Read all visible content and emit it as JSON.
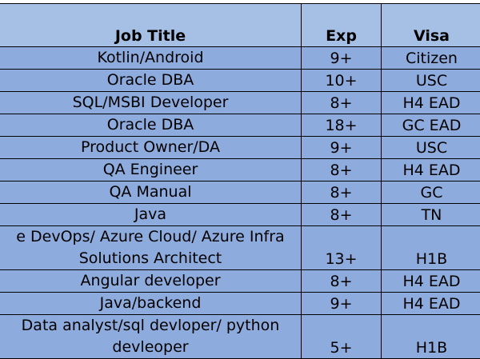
{
  "headers": {
    "title": "Job Title",
    "exp": "Exp",
    "visa": "Visa"
  },
  "rows": [
    {
      "title_lines": [
        "Kotlin/Android"
      ],
      "exp": "9+",
      "visa": "Citizen"
    },
    {
      "title_lines": [
        "Oracle DBA"
      ],
      "exp": "10+",
      "visa": "USC"
    },
    {
      "title_lines": [
        "SQL/MSBI Developer"
      ],
      "exp": "8+",
      "visa": "H4  EAD"
    },
    {
      "title_lines": [
        "Oracle DBA"
      ],
      "exp": "18+",
      "visa": "GC EAD"
    },
    {
      "title_lines": [
        "Product Owner/DA"
      ],
      "exp": "9+",
      "visa": "USC"
    },
    {
      "title_lines": [
        "QA Engineer"
      ],
      "exp": "8+",
      "visa": "H4 EAD"
    },
    {
      "title_lines": [
        "QA Manual"
      ],
      "exp": "8+",
      "visa": "GC"
    },
    {
      "title_lines": [
        "Java"
      ],
      "exp": "8+",
      "visa": "TN"
    },
    {
      "title_lines": [
        "e DevOps/ Azure Cloud/ Azure Infra",
        "Solutions Architect"
      ],
      "exp": "13+",
      "visa": "H1B"
    },
    {
      "title_lines": [
        "Angular developer"
      ],
      "exp": "8+",
      "visa": "H4 EAD"
    },
    {
      "title_lines": [
        "Java/backend"
      ],
      "exp": "9+",
      "visa": "H4 EAD"
    },
    {
      "title_lines": [
        "Data analyst/sql devloper/ python",
        "devleoper"
      ],
      "exp": "5+",
      "visa": "H1B"
    }
  ]
}
